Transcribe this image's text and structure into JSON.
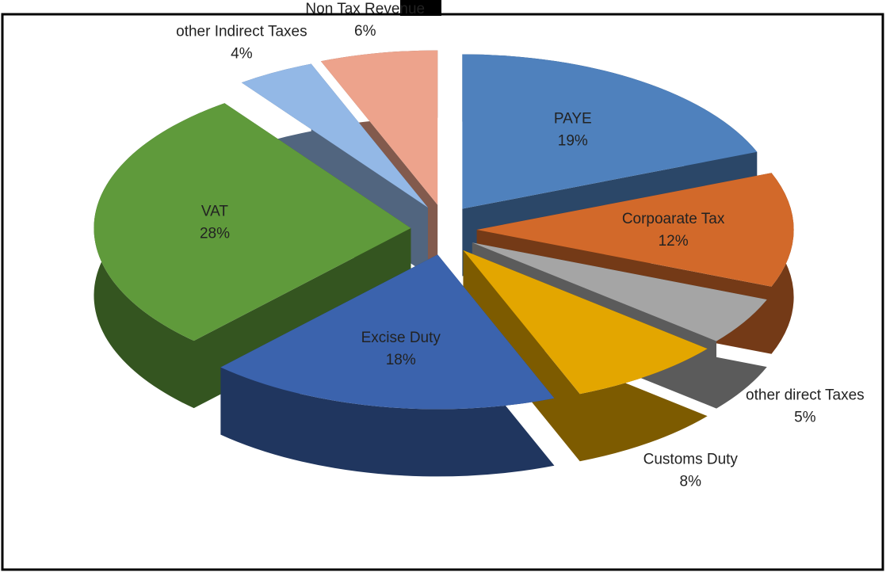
{
  "chart_data": {
    "type": "pie",
    "categories": [
      "PAYE",
      "Corpoarate Tax",
      "other direct Taxes",
      "Customs Duty",
      "Excise Duty",
      "VAT",
      "other Indirect Taxes",
      "Non Tax Revenue"
    ],
    "values": [
      19,
      12,
      5,
      8,
      18,
      28,
      4,
      6
    ],
    "value_labels": [
      "19%",
      "12%",
      "5%",
      "8%",
      "18%",
      "28%",
      "4%",
      "6%"
    ],
    "colors": [
      "#4f81bd",
      "#d2692a",
      "#a5a5a5",
      "#e3a600",
      "#3b63ad",
      "#5f9a3b",
      "#93b8e6",
      "#eda38c"
    ]
  }
}
